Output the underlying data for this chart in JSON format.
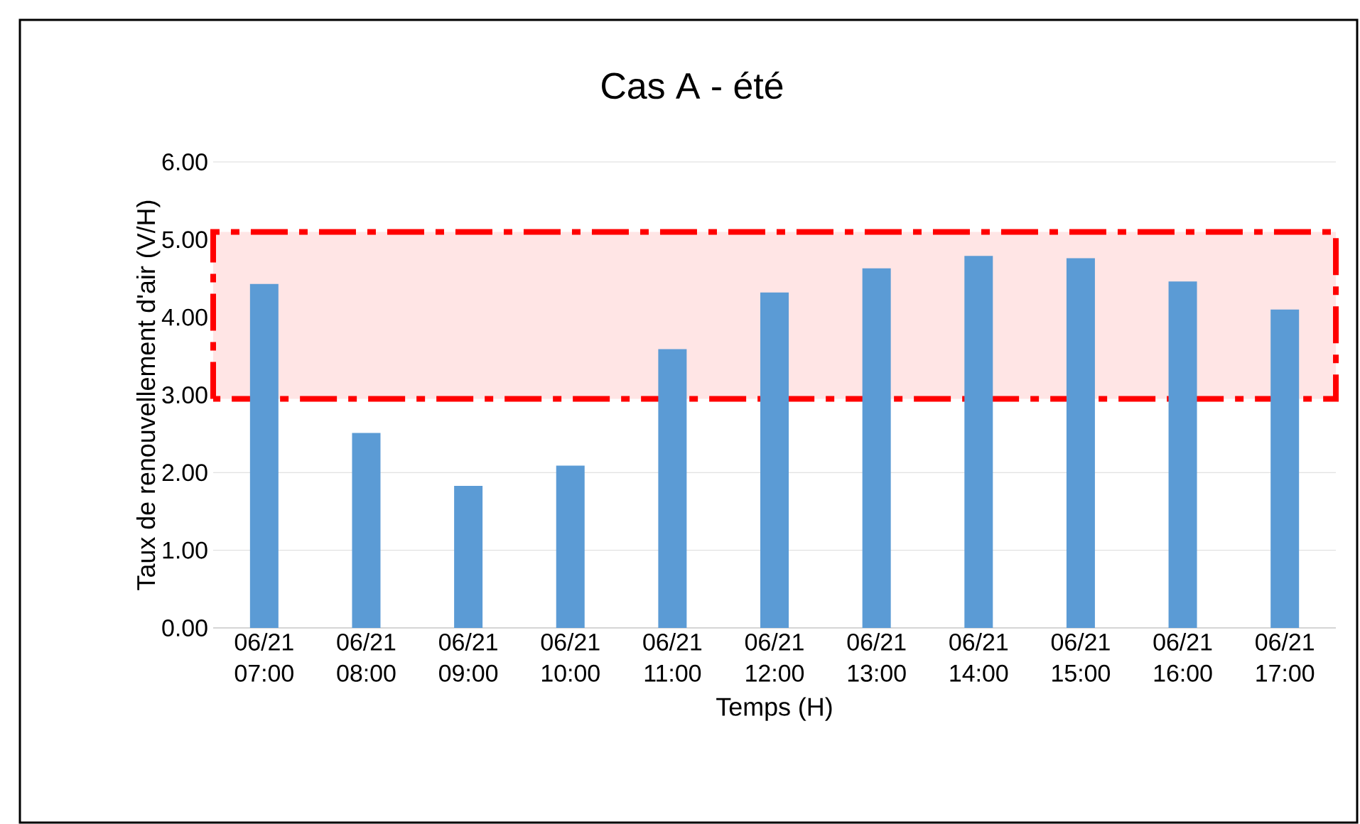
{
  "chart_data": {
    "type": "bar",
    "title": "Cas A - été",
    "xlabel": "Temps (H)",
    "ylabel": "Taux de renouvellement d'air (V/H)",
    "categories": [
      "06/21 07:00",
      "06/21 08:00",
      "06/21 09:00",
      "06/21 10:00",
      "06/21 11:00",
      "06/21 12:00",
      "06/21 13:00",
      "06/21 14:00",
      "06/21 15:00",
      "06/21 16:00",
      "06/21 17:00"
    ],
    "values": [
      4.43,
      2.51,
      1.83,
      2.09,
      3.59,
      4.32,
      4.63,
      4.79,
      4.76,
      4.46,
      4.1
    ],
    "color": "#5b9bd5",
    "ylim": [
      0,
      6
    ],
    "yticks": [
      {
        "value": 0,
        "label": "0.00"
      },
      {
        "value": 1,
        "label": "1.00"
      },
      {
        "value": 2,
        "label": "2.00"
      },
      {
        "value": 3,
        "label": "3.00"
      },
      {
        "value": 4,
        "label": "4.00"
      },
      {
        "value": 5,
        "label": "5.00"
      },
      {
        "value": 6,
        "label": "6.00"
      }
    ],
    "grid": "y",
    "bands": [
      {
        "axis": "y",
        "from": 2.95,
        "to": 5.1,
        "color": "#ff0000"
      }
    ]
  }
}
